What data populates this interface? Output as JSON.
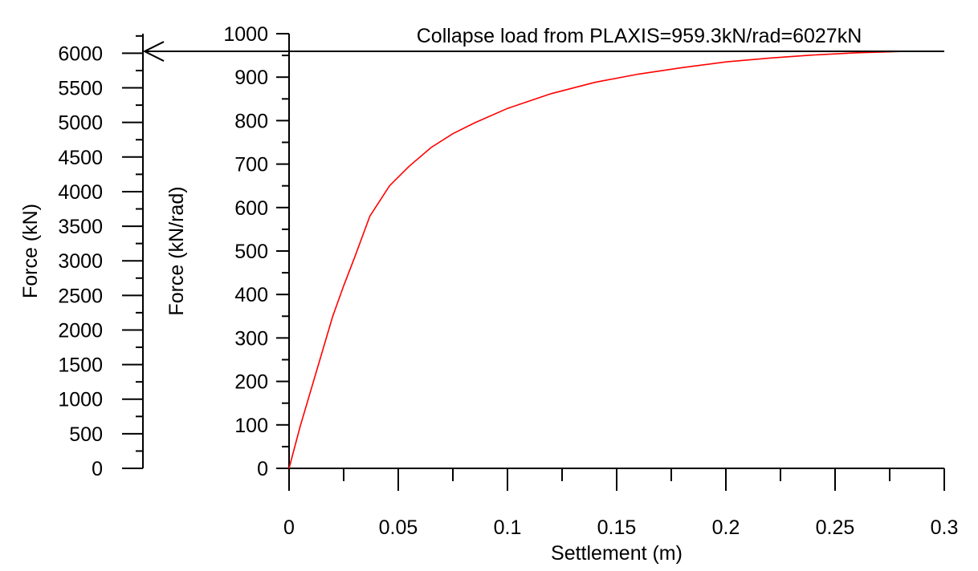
{
  "chart_data": {
    "type": "line",
    "title": "",
    "xlabel": "Settlement (m)",
    "ylabel": "Force (kN/rad)",
    "ylabel_secondary": "Force (kN)",
    "xlim": [
      0,
      0.3
    ],
    "ylim": [
      0,
      1000
    ],
    "ylim_secondary": [
      0,
      6283
    ],
    "x_ticks": [
      0,
      0.05,
      0.1,
      0.15,
      0.2,
      0.25,
      0.3
    ],
    "x_tick_labels": [
      "0",
      "0.05",
      "0.1",
      "0.15",
      "0.2",
      "0.25",
      "0.3"
    ],
    "x_minor_step": 0.025,
    "y_ticks": [
      0,
      100,
      200,
      300,
      400,
      500,
      600,
      700,
      800,
      900,
      1000
    ],
    "y_tick_labels": [
      "0",
      "100",
      "200",
      "300",
      "400",
      "500",
      "600",
      "700",
      "800",
      "900",
      "1000"
    ],
    "y_minor_step": 50,
    "y2_ticks": [
      0,
      500,
      1000,
      1500,
      2000,
      2500,
      3000,
      3500,
      4000,
      4500,
      5000,
      5500,
      6000
    ],
    "y2_tick_labels": [
      "0",
      "500",
      "1000",
      "1500",
      "2000",
      "2500",
      "3000",
      "3500",
      "4000",
      "4500",
      "5000",
      "5500",
      "6000"
    ],
    "y2_minor_step": 250,
    "grid": false,
    "series": [
      {
        "color": "#ff0000",
        "x": [
          0,
          0.005,
          0.01,
          0.015,
          0.02,
          0.025,
          0.03,
          0.037,
          0.046,
          0.055,
          0.065,
          0.075,
          0.085,
          0.1,
          0.12,
          0.14,
          0.16,
          0.18,
          0.2,
          0.22,
          0.24,
          0.26,
          0.28,
          0.3
        ],
        "y": [
          0,
          95,
          180,
          265,
          350,
          420,
          485,
          580,
          650,
          695,
          738,
          770,
          795,
          828,
          862,
          888,
          907,
          922,
          935,
          944,
          951,
          956,
          959,
          959.3
        ]
      }
    ],
    "annotations": [
      {
        "text": "Collapse load from PLAXIS=959.3kN/rad=6027kN",
        "y_value": 959.3,
        "y2_value": 6027
      }
    ]
  }
}
